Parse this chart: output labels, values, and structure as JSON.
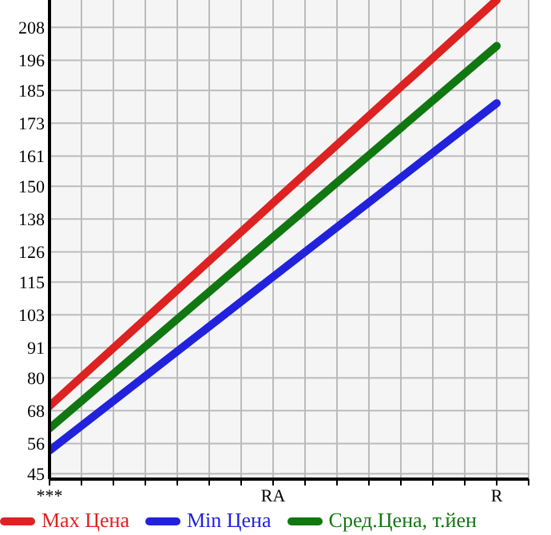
{
  "chart_data": {
    "type": "line",
    "categories": [
      "***",
      "RA",
      "R"
    ],
    "series": [
      {
        "name": "Max Цена",
        "color": "#dd2222",
        "values": [
          69.7,
          143.9,
          218
        ]
      },
      {
        "name": "Min Цена",
        "color": "#2222dd",
        "values": [
          53.4,
          116.9,
          180.3
        ]
      },
      {
        "name": "Сред.Цена, т.йен",
        "color": "#117711",
        "values": [
          61.5,
          131.4,
          201.2
        ]
      }
    ],
    "ylim": [
      43,
      218
    ],
    "yticks": [
      45,
      56,
      68,
      80,
      91,
      103,
      115,
      126,
      138,
      150,
      161,
      173,
      185,
      196,
      208
    ],
    "grid": true,
    "legend": "bottom",
    "marker": "none",
    "line_style": "solid"
  }
}
